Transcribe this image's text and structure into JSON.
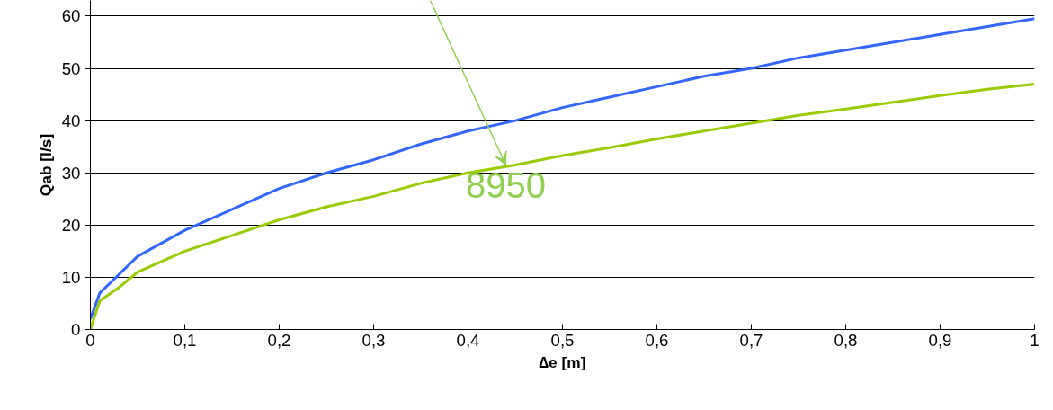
{
  "chart_data": {
    "type": "line",
    "xlabel": "∆e [m]",
    "ylabel": "Qab [l/s]",
    "x": [
      0,
      0.01,
      0.03,
      0.05,
      0.1,
      0.15,
      0.2,
      0.25,
      0.3,
      0.35,
      0.4,
      0.45,
      0.5,
      0.55,
      0.6,
      0.65,
      0.7,
      0.75,
      0.8,
      0.85,
      0.9,
      0.95,
      1
    ],
    "series": [
      {
        "color": "#3366ff",
        "values": [
          2,
          7,
          10.5,
          14,
          19,
          23,
          27,
          30,
          32.5,
          35.5,
          38,
          40,
          42.5,
          44.5,
          46.5,
          48.5,
          50,
          52,
          53.5,
          55,
          56.5,
          58,
          59.5
        ]
      },
      {
        "color": "#99cc00",
        "values": [
          0,
          5.5,
          8,
          11,
          15,
          18,
          21,
          23.5,
          25.5,
          28,
          30,
          31.5,
          33.3,
          34.8,
          36.5,
          38,
          39.5,
          41,
          42.2,
          43.5,
          44.8,
          46,
          47
        ]
      }
    ],
    "annotations": [
      {
        "text": "8950",
        "x": 0.44,
        "y": 31.5
      }
    ],
    "xlim": [
      0,
      1
    ],
    "ylim": [
      0,
      63
    ],
    "xticks": [
      0,
      {
        "value": 0.1,
        "label": "0,1"
      },
      {
        "value": 0.2,
        "label": "0,2"
      },
      {
        "value": 0.3,
        "label": "0,3"
      },
      {
        "value": 0.4,
        "label": "0,4"
      },
      {
        "value": 0.5,
        "label": "0,5"
      },
      {
        "value": 0.6,
        "label": "0,6"
      },
      {
        "value": 0.7,
        "label": "0,7"
      },
      {
        "value": 0.8,
        "label": "0,8"
      },
      {
        "value": 0.9,
        "label": "0,9"
      },
      1
    ],
    "yticks": [
      0,
      10,
      20,
      30,
      40,
      50,
      60
    ],
    "grid": "y",
    "marker": "none",
    "line_style": "solid"
  }
}
